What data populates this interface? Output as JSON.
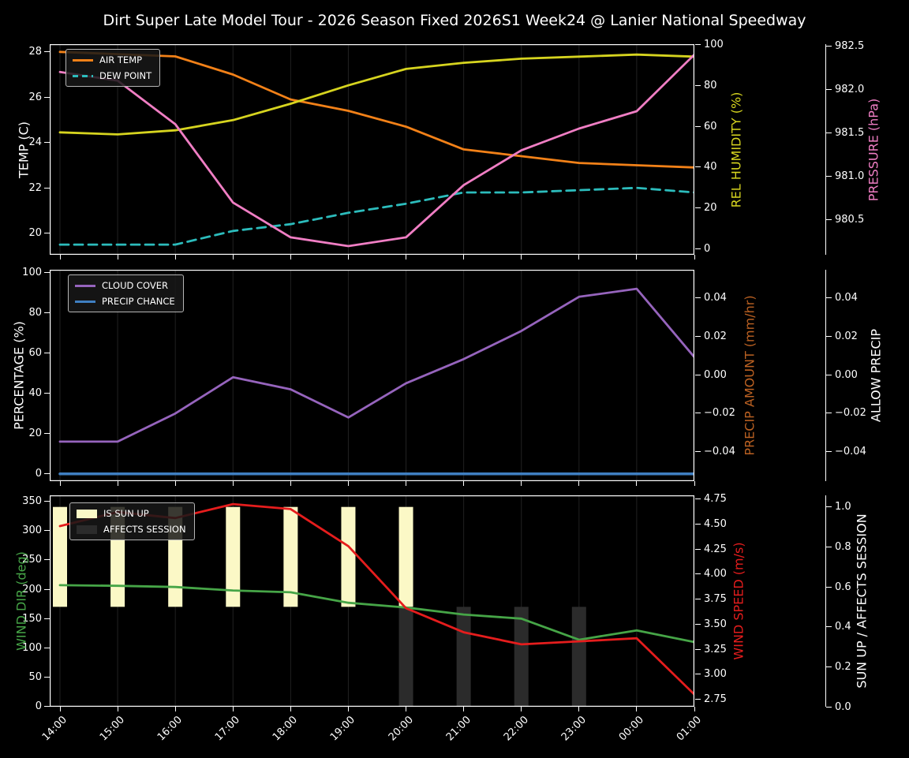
{
  "title": "Dirt Super Late Model Tour - 2026 Season Fixed 2026S1 Week24 @ Lanier National Speedway",
  "colors": {
    "background": "#000000",
    "text": "#ffffff",
    "grid": "#212121",
    "air_temp": "#f28118",
    "dew_point": "#2cbcbc",
    "rel_humidity": "#d6d41f",
    "pressure": "#f07ec4",
    "cloud_cover": "#9664bd",
    "precip_chance": "#3f7fc1",
    "precip_amount": "#bb6122",
    "wind_dir": "#46a547",
    "wind_speed": "#e51d1d",
    "sun_up_bar": "#fbf8c6",
    "affects_bar": "#2b2b2b"
  },
  "chart_data": [
    {
      "type": "line",
      "name": "temperature-humidity-pressure",
      "categories": [
        "14:00",
        "15:00",
        "16:00",
        "17:00",
        "18:00",
        "19:00",
        "20:00",
        "21:00",
        "22:00",
        "23:00",
        "00:00",
        "01:00"
      ],
      "legend": [
        "AIR TEMP",
        "DEW POINT"
      ],
      "series": [
        {
          "name": "AIR TEMP",
          "axis": "temp",
          "color_key": "air_temp",
          "style": "solid",
          "values": [
            28.0,
            27.9,
            27.8,
            27.0,
            25.9,
            25.4,
            24.7,
            23.7,
            23.4,
            23.1,
            23.0,
            22.9
          ]
        },
        {
          "name": "DEW POINT",
          "axis": "temp",
          "color_key": "dew_point",
          "style": "dashed",
          "values": [
            19.5,
            19.5,
            19.5,
            20.1,
            20.4,
            20.9,
            21.3,
            21.8,
            21.8,
            21.9,
            22.0,
            21.8
          ]
        },
        {
          "name": "REL HUMIDITY",
          "axis": "humidity",
          "color_key": "rel_humidity",
          "style": "solid",
          "values": [
            57,
            56,
            58,
            63,
            71,
            80,
            88,
            91,
            93,
            94,
            95,
            94
          ]
        },
        {
          "name": "PRESSURE",
          "axis": "pressure",
          "color_key": "pressure",
          "style": "solid",
          "values": [
            982.2,
            982.1,
            981.6,
            980.7,
            980.3,
            980.2,
            980.3,
            980.9,
            981.3,
            981.55,
            981.75,
            982.4
          ]
        }
      ],
      "axes": {
        "temp": {
          "label": "TEMP (C)",
          "color_key": "text",
          "side": "left",
          "range": [
            19.05,
            28.34
          ],
          "ticks": [
            {
              "v": 28,
              "t": "28"
            },
            {
              "v": 26,
              "t": "26"
            },
            {
              "v": 24,
              "t": "24"
            },
            {
              "v": 22,
              "t": "22"
            },
            {
              "v": 20,
              "t": "20"
            }
          ]
        },
        "humidity": {
          "label": "REL HUMIDITY (%)",
          "color_key": "rel_humidity",
          "side": "right",
          "range": [
            -2.8,
            100.1
          ],
          "ticks": [
            {
              "v": 100,
              "t": "100"
            },
            {
              "v": 80,
              "t": "80"
            },
            {
              "v": 60,
              "t": "60"
            },
            {
              "v": 40,
              "t": "40"
            },
            {
              "v": 20,
              "t": "20"
            },
            {
              "v": 0,
              "t": "0"
            }
          ]
        },
        "pressure": {
          "label": "PRESSURE (hPa)",
          "color_key": "pressure",
          "side": "far",
          "range": [
            980.1,
            982.52
          ],
          "ticks": [
            {
              "v": 982.5,
              "t": "982.5"
            },
            {
              "v": 982.0,
              "t": "982.0"
            },
            {
              "v": 981.5,
              "t": "981.5"
            },
            {
              "v": 981.0,
              "t": "981.0"
            },
            {
              "v": 980.5,
              "t": "980.5"
            }
          ]
        }
      }
    },
    {
      "type": "line",
      "name": "cloud-precip",
      "categories": [
        "14:00",
        "15:00",
        "16:00",
        "17:00",
        "18:00",
        "19:00",
        "20:00",
        "21:00",
        "22:00",
        "23:00",
        "00:00",
        "01:00"
      ],
      "legend": [
        "CLOUD COVER",
        "PRECIP CHANCE"
      ],
      "series": [
        {
          "name": "CLOUD COVER",
          "axis": "pct",
          "color_key": "cloud_cover",
          "style": "solid",
          "values": [
            16,
            16,
            30,
            48,
            42,
            28,
            45,
            57,
            71,
            88,
            92,
            58
          ]
        },
        {
          "name": "PRECIP CHANCE",
          "axis": "pct",
          "color_key": "precip_chance",
          "style": "solid",
          "width": 3.5,
          "values": [
            0,
            0,
            0,
            0,
            0,
            0,
            0,
            0,
            0,
            0,
            0,
            0
          ]
        }
      ],
      "axes": {
        "pct": {
          "label": "PERCENTAGE (%)",
          "color_key": "text",
          "side": "left",
          "range": [
            -3.65,
            101.45
          ],
          "ticks": [
            {
              "v": 100,
              "t": "100"
            },
            {
              "v": 80,
              "t": "80"
            },
            {
              "v": 60,
              "t": "60"
            },
            {
              "v": 40,
              "t": "40"
            },
            {
              "v": 20,
              "t": "20"
            },
            {
              "v": 0,
              "t": "0"
            }
          ]
        },
        "amount": {
          "label": "PRECIP AMOUNT (mm/hr)",
          "color_key": "precip_amount",
          "side": "right",
          "range": [
            -0.0555,
            0.0547
          ],
          "ticks": [
            {
              "v": 0.04,
              "t": "0.04"
            },
            {
              "v": 0.02,
              "t": "0.02"
            },
            {
              "v": 0.0,
              "t": "0.00"
            },
            {
              "v": -0.02,
              "t": "−0.02"
            },
            {
              "v": -0.04,
              "t": "−0.04"
            }
          ]
        },
        "allow": {
          "label": "ALLOW PRECIP",
          "color_key": "text",
          "side": "far",
          "range": [
            -0.0555,
            0.0547
          ],
          "ticks": [
            {
              "v": 0.04,
              "t": "0.04"
            },
            {
              "v": 0.02,
              "t": "0.02"
            },
            {
              "v": 0.0,
              "t": "0.00"
            },
            {
              "v": -0.02,
              "t": "−0.02"
            },
            {
              "v": -0.04,
              "t": "−0.04"
            }
          ]
        }
      }
    },
    {
      "type": "line+bar",
      "name": "wind-sun",
      "categories": [
        "14:00",
        "15:00",
        "16:00",
        "17:00",
        "18:00",
        "19:00",
        "20:00",
        "21:00",
        "22:00",
        "23:00",
        "00:00",
        "01:00"
      ],
      "legend": [
        "IS SUN UP",
        "AFFECTS SESSION"
      ],
      "bars": [
        {
          "name": "IS SUN UP",
          "axis": "sun",
          "color_key": "sun_up_bar",
          "span": [
            0.5,
            1.0
          ],
          "values": [
            1,
            1,
            1,
            1,
            1,
            1,
            1,
            0,
            0,
            0,
            0,
            0
          ]
        },
        {
          "name": "AFFECTS SESSION",
          "axis": "sun",
          "color_key": "affects_bar",
          "span": [
            0.0,
            0.5
          ],
          "values": [
            0,
            0,
            0,
            0,
            0,
            0,
            1,
            1,
            1,
            1,
            0,
            0
          ]
        }
      ],
      "series": [
        {
          "name": "WIND DIR",
          "axis": "dir",
          "color_key": "wind_dir",
          "style": "solid",
          "values": [
            207,
            206,
            204,
            198,
            195,
            177,
            169,
            157,
            150,
            114,
            130,
            110
          ]
        },
        {
          "name": "WIND SPEED",
          "axis": "speed",
          "color_key": "wind_speed",
          "style": "solid",
          "values": [
            4.48,
            4.62,
            4.56,
            4.7,
            4.65,
            4.28,
            3.66,
            3.42,
            3.3,
            3.33,
            3.36,
            2.8
          ]
        }
      ],
      "axes": {
        "dir": {
          "label": "WIND DIR (deg)",
          "color_key": "wind_dir",
          "side": "left",
          "range": [
            -0.3,
            360.3
          ],
          "ticks": [
            {
              "v": 350,
              "t": "350"
            },
            {
              "v": 300,
              "t": "300"
            },
            {
              "v": 250,
              "t": "250"
            },
            {
              "v": 200,
              "t": "200"
            },
            {
              "v": 150,
              "t": "150"
            },
            {
              "v": 100,
              "t": "100"
            },
            {
              "v": 50,
              "t": "50"
            },
            {
              "v": 0,
              "t": "0"
            }
          ]
        },
        "speed": {
          "label": "WIND SPEED (m/s)",
          "color_key": "wind_speed",
          "side": "right",
          "range": [
            2.677,
            4.787
          ],
          "ticks": [
            {
              "v": 4.75,
              "t": "4.75"
            },
            {
              "v": 4.5,
              "t": "4.50"
            },
            {
              "v": 4.25,
              "t": "4.25"
            },
            {
              "v": 4.0,
              "t": "4.00"
            },
            {
              "v": 3.75,
              "t": "3.75"
            },
            {
              "v": 3.5,
              "t": "3.50"
            },
            {
              "v": 3.25,
              "t": "3.25"
            },
            {
              "v": 3.0,
              "t": "3.00"
            },
            {
              "v": 2.75,
              "t": "2.75"
            }
          ]
        },
        "sun": {
          "label": "SUN UP / AFFECTS SESSION",
          "color_key": "text",
          "side": "far",
          "range": [
            0,
            1.058
          ],
          "ticks": [
            {
              "v": 1.0,
              "t": "1.0"
            },
            {
              "v": 0.8,
              "t": "0.8"
            },
            {
              "v": 0.6,
              "t": "0.6"
            },
            {
              "v": 0.4,
              "t": "0.4"
            },
            {
              "v": 0.2,
              "t": "0.2"
            },
            {
              "v": 0.0,
              "t": "0.0"
            }
          ]
        }
      }
    }
  ]
}
